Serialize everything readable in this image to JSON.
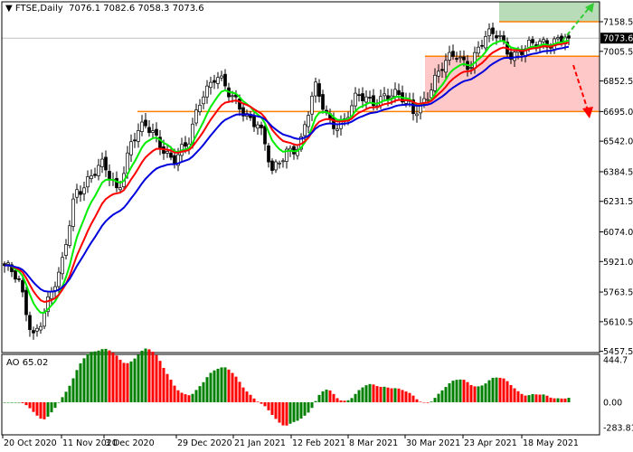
{
  "header": {
    "symbol_timeframe": "FTSE,Daily",
    "ohlc": "7076.1 7082.6 7058.3 7073.6",
    "menu_icon": "triangle-down-icon"
  },
  "price_axis": {
    "ticks": [
      "7158.5",
      "7005.5",
      "6852.5",
      "6695.0",
      "6542.0",
      "6384.5",
      "6231.5",
      "6074.0",
      "5921.0",
      "5763.5",
      "5610.5",
      "5457.5"
    ],
    "tick_values": [
      7158.5,
      7005.5,
      6852.5,
      6695.0,
      6542.0,
      6384.5,
      6231.5,
      6074.0,
      5921.0,
      5763.5,
      5610.5,
      5457.5
    ],
    "current_price": "7073.6",
    "current_price_value": 7073.6
  },
  "ao_panel": {
    "label": "AO 65.02",
    "ticks": [
      "444.7",
      "0.00",
      "-283.81"
    ],
    "tick_values": [
      444.7,
      0,
      -283.81
    ],
    "up_color": "#008000",
    "down_color": "#ff0000"
  },
  "time_axis": {
    "labels": [
      "20 Oct 2020",
      "11 Nov 2020",
      "3 Dec 2020",
      "29 Dec 2020",
      "21 Jan 2021",
      "12 Feb 2021",
      "8 Mar 2021",
      "30 Mar 2021",
      "23 Apr 2021",
      "18 May 2021"
    ]
  },
  "levels": {
    "resistance": 7158.5,
    "pivot": 6980,
    "support": 6695.0,
    "level_color": "#ff7f00",
    "buy_zone_color": "#b8dcb8",
    "sell_zone_color": "#ffc8c8",
    "up_arrow_color": "#33cc33",
    "down_arrow_color": "#ff0000"
  },
  "colors": {
    "fast_ma": "#00ee00",
    "medium_ma": "#ff0000",
    "slow_ma": "#0000dd",
    "candle": "#000000"
  },
  "chart_data": {
    "type": "candlestick",
    "approx_close_path": [
      5900,
      5800,
      5550,
      5700,
      5850,
      6300,
      6350,
      6400,
      6300,
      6550,
      6600,
      6550,
      6450,
      6500,
      6800,
      6900,
      6750,
      6700,
      6650,
      6350,
      6500,
      6550,
      6800,
      6650,
      6650,
      6750,
      6750,
      6800,
      6750,
      6700,
      6800,
      6900,
      7000,
      6950,
      7050,
      7100,
      7000,
      7000,
      7050,
      7080,
      7073.6
    ],
    "bars": 157
  }
}
